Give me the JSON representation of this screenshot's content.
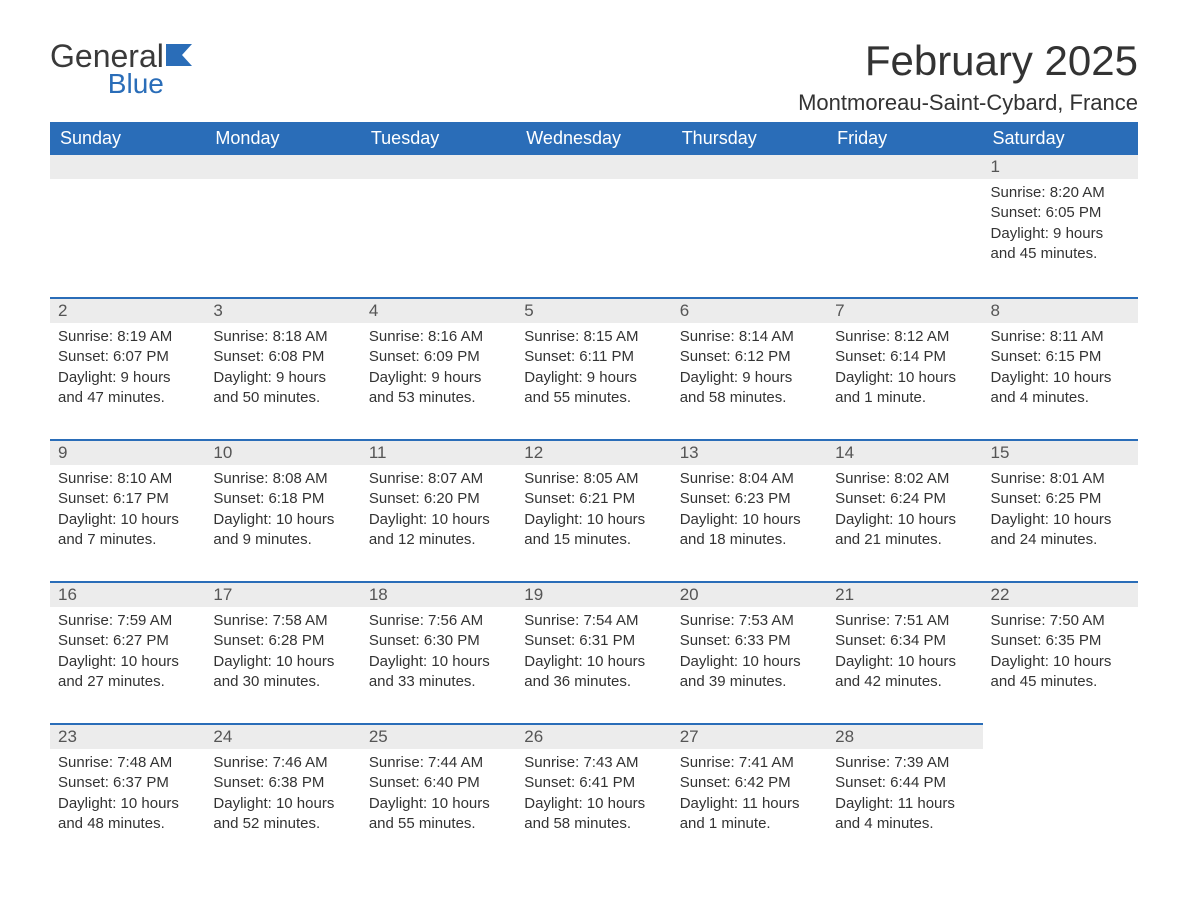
{
  "logo": {
    "word1": "General",
    "word2": "Blue"
  },
  "header": {
    "month_title": "February 2025",
    "location": "Montmoreau-Saint-Cybard, France"
  },
  "columns": [
    "Sunday",
    "Monday",
    "Tuesday",
    "Wednesday",
    "Thursday",
    "Friday",
    "Saturday"
  ],
  "style": {
    "header_bg": "#2a6db8",
    "header_fg": "#ffffff",
    "daynum_bg": "#ececec",
    "daynum_border": "#2a6db8",
    "body_bg": "#ffffff",
    "text_color": "#333333",
    "th_fontsize": 18,
    "title_fontsize": 42,
    "location_fontsize": 22,
    "cell_fontsize": 15
  },
  "weeks": [
    [
      null,
      null,
      null,
      null,
      null,
      null,
      {
        "n": "1",
        "sunrise": "Sunrise: 8:20 AM",
        "sunset": "Sunset: 6:05 PM",
        "daylight": "Daylight: 9 hours and 45 minutes."
      }
    ],
    [
      {
        "n": "2",
        "sunrise": "Sunrise: 8:19 AM",
        "sunset": "Sunset: 6:07 PM",
        "daylight": "Daylight: 9 hours and 47 minutes."
      },
      {
        "n": "3",
        "sunrise": "Sunrise: 8:18 AM",
        "sunset": "Sunset: 6:08 PM",
        "daylight": "Daylight: 9 hours and 50 minutes."
      },
      {
        "n": "4",
        "sunrise": "Sunrise: 8:16 AM",
        "sunset": "Sunset: 6:09 PM",
        "daylight": "Daylight: 9 hours and 53 minutes."
      },
      {
        "n": "5",
        "sunrise": "Sunrise: 8:15 AM",
        "sunset": "Sunset: 6:11 PM",
        "daylight": "Daylight: 9 hours and 55 minutes."
      },
      {
        "n": "6",
        "sunrise": "Sunrise: 8:14 AM",
        "sunset": "Sunset: 6:12 PM",
        "daylight": "Daylight: 9 hours and 58 minutes."
      },
      {
        "n": "7",
        "sunrise": "Sunrise: 8:12 AM",
        "sunset": "Sunset: 6:14 PM",
        "daylight": "Daylight: 10 hours and 1 minute."
      },
      {
        "n": "8",
        "sunrise": "Sunrise: 8:11 AM",
        "sunset": "Sunset: 6:15 PM",
        "daylight": "Daylight: 10 hours and 4 minutes."
      }
    ],
    [
      {
        "n": "9",
        "sunrise": "Sunrise: 8:10 AM",
        "sunset": "Sunset: 6:17 PM",
        "daylight": "Daylight: 10 hours and 7 minutes."
      },
      {
        "n": "10",
        "sunrise": "Sunrise: 8:08 AM",
        "sunset": "Sunset: 6:18 PM",
        "daylight": "Daylight: 10 hours and 9 minutes."
      },
      {
        "n": "11",
        "sunrise": "Sunrise: 8:07 AM",
        "sunset": "Sunset: 6:20 PM",
        "daylight": "Daylight: 10 hours and 12 minutes."
      },
      {
        "n": "12",
        "sunrise": "Sunrise: 8:05 AM",
        "sunset": "Sunset: 6:21 PM",
        "daylight": "Daylight: 10 hours and 15 minutes."
      },
      {
        "n": "13",
        "sunrise": "Sunrise: 8:04 AM",
        "sunset": "Sunset: 6:23 PM",
        "daylight": "Daylight: 10 hours and 18 minutes."
      },
      {
        "n": "14",
        "sunrise": "Sunrise: 8:02 AM",
        "sunset": "Sunset: 6:24 PM",
        "daylight": "Daylight: 10 hours and 21 minutes."
      },
      {
        "n": "15",
        "sunrise": "Sunrise: 8:01 AM",
        "sunset": "Sunset: 6:25 PM",
        "daylight": "Daylight: 10 hours and 24 minutes."
      }
    ],
    [
      {
        "n": "16",
        "sunrise": "Sunrise: 7:59 AM",
        "sunset": "Sunset: 6:27 PM",
        "daylight": "Daylight: 10 hours and 27 minutes."
      },
      {
        "n": "17",
        "sunrise": "Sunrise: 7:58 AM",
        "sunset": "Sunset: 6:28 PM",
        "daylight": "Daylight: 10 hours and 30 minutes."
      },
      {
        "n": "18",
        "sunrise": "Sunrise: 7:56 AM",
        "sunset": "Sunset: 6:30 PM",
        "daylight": "Daylight: 10 hours and 33 minutes."
      },
      {
        "n": "19",
        "sunrise": "Sunrise: 7:54 AM",
        "sunset": "Sunset: 6:31 PM",
        "daylight": "Daylight: 10 hours and 36 minutes."
      },
      {
        "n": "20",
        "sunrise": "Sunrise: 7:53 AM",
        "sunset": "Sunset: 6:33 PM",
        "daylight": "Daylight: 10 hours and 39 minutes."
      },
      {
        "n": "21",
        "sunrise": "Sunrise: 7:51 AM",
        "sunset": "Sunset: 6:34 PM",
        "daylight": "Daylight: 10 hours and 42 minutes."
      },
      {
        "n": "22",
        "sunrise": "Sunrise: 7:50 AM",
        "sunset": "Sunset: 6:35 PM",
        "daylight": "Daylight: 10 hours and 45 minutes."
      }
    ],
    [
      {
        "n": "23",
        "sunrise": "Sunrise: 7:48 AM",
        "sunset": "Sunset: 6:37 PM",
        "daylight": "Daylight: 10 hours and 48 minutes."
      },
      {
        "n": "24",
        "sunrise": "Sunrise: 7:46 AM",
        "sunset": "Sunset: 6:38 PM",
        "daylight": "Daylight: 10 hours and 52 minutes."
      },
      {
        "n": "25",
        "sunrise": "Sunrise: 7:44 AM",
        "sunset": "Sunset: 6:40 PM",
        "daylight": "Daylight: 10 hours and 55 minutes."
      },
      {
        "n": "26",
        "sunrise": "Sunrise: 7:43 AM",
        "sunset": "Sunset: 6:41 PM",
        "daylight": "Daylight: 10 hours and 58 minutes."
      },
      {
        "n": "27",
        "sunrise": "Sunrise: 7:41 AM",
        "sunset": "Sunset: 6:42 PM",
        "daylight": "Daylight: 11 hours and 1 minute."
      },
      {
        "n": "28",
        "sunrise": "Sunrise: 7:39 AM",
        "sunset": "Sunset: 6:44 PM",
        "daylight": "Daylight: 11 hours and 4 minutes."
      },
      null
    ]
  ]
}
